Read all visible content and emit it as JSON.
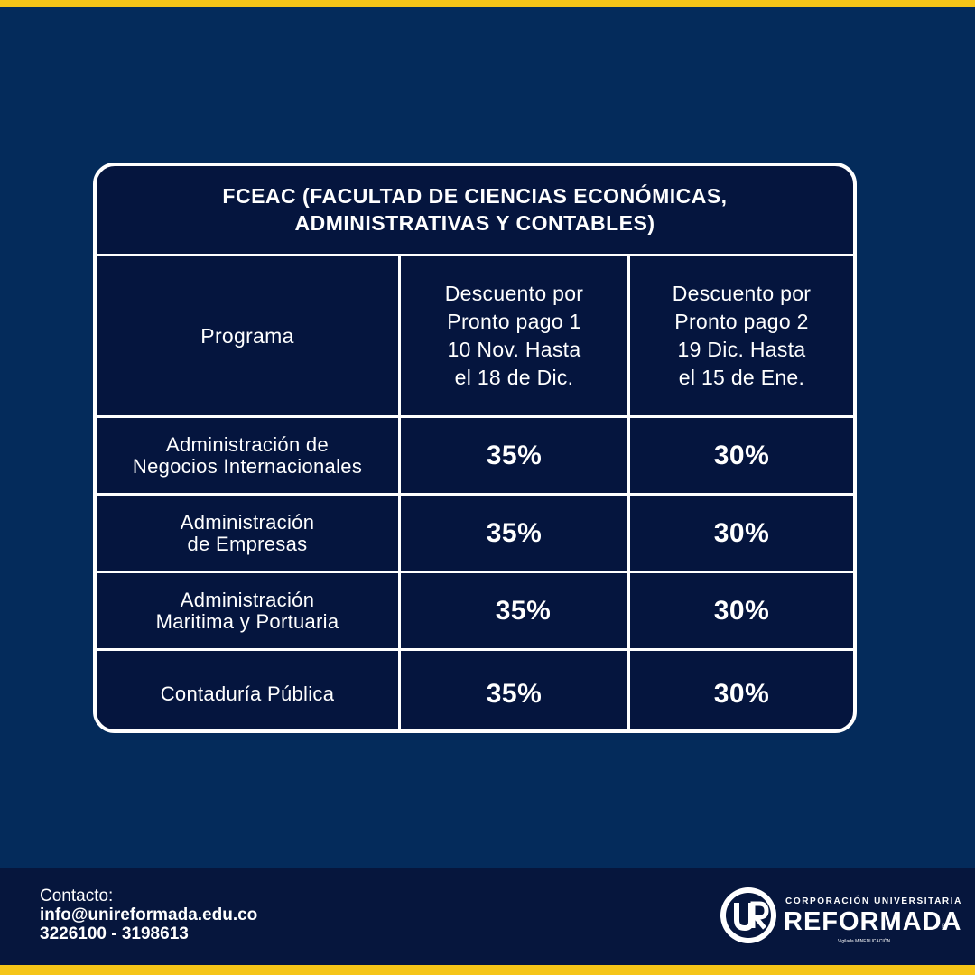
{
  "title_line1": "FCEAC (FACULTAD DE CIENCIAS ECONÓMICAS,",
  "title_line2": "ADMINISTRATIVAS Y CONTABLES)",
  "table": {
    "headers": [
      "Programa",
      "Descuento por\nPronto pago 1\n10 Nov. Hasta\nel 18 de Dic.",
      "Descuento por\nPronto pago 2\n19 Dic. Hasta\nel 15 de Ene."
    ],
    "rows": [
      {
        "program": "Administración de\nNegocios Internacionales",
        "discount_1": "35%",
        "discount_2": "30%"
      },
      {
        "program": "Administración\nde Empresas",
        "discount_1": "35%",
        "discount_2": "30%"
      },
      {
        "program": "Administración\nMaritima y Portuaria",
        "discount_1": "35%",
        "discount_2": "30%"
      },
      {
        "program": "Contaduría Pública",
        "discount_1": "35%",
        "discount_2": "30%"
      }
    ]
  },
  "footer": {
    "contact_label": "Contacto:",
    "email": "info@unireformada.edu.co",
    "phones": "3226100 - 3198613"
  },
  "logo": {
    "small": "CORPORACIÓN UNIVERSITARIA",
    "big": "REFORMADA",
    "registered": "®",
    "tiny": "Vigilada MINEDUCACIÓN"
  },
  "colors": {
    "background": "#042b5b",
    "card": "#05153e",
    "accent": "#f5c518",
    "footer": "#06163d",
    "text": "#ffffff"
  }
}
